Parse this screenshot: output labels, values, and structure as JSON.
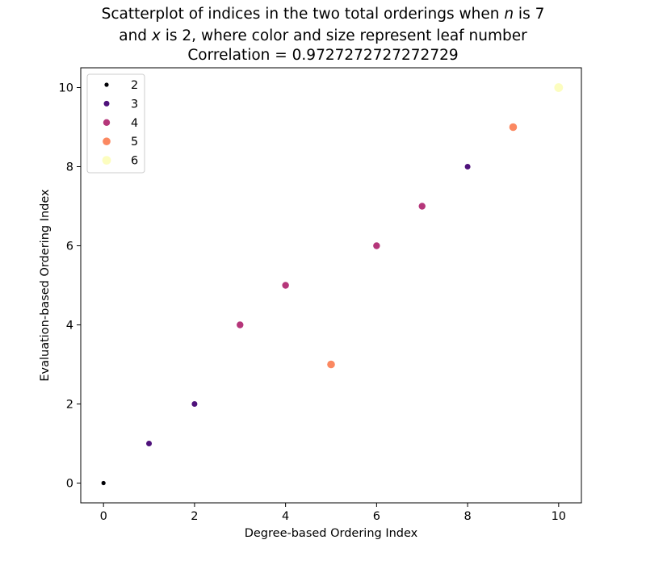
{
  "chart_data": {
    "type": "scatter",
    "title": {
      "line1_part1": "Scatterplot of indices in the two total orderings when ",
      "n_var": "n",
      "line1_part2": " is 7",
      "line2_part1": "and ",
      "x_var": "x",
      "line2_part2": " is 2, where color and size represent leaf number",
      "line3": "Correlation = 0.9727272727272729"
    },
    "xlabel": "Degree-based Ordering Index",
    "ylabel": "Evaluation-based Ordering Index",
    "xlim": [
      -0.5,
      10.5
    ],
    "ylim": [
      -0.5,
      10.5
    ],
    "xticks": [
      0,
      2,
      4,
      6,
      8,
      10
    ],
    "yticks": [
      0,
      2,
      4,
      6,
      8,
      10
    ],
    "grid": false,
    "legend_position": "top-left",
    "legend": [
      {
        "label": "2",
        "color": "#000004"
      },
      {
        "label": "3",
        "color": "#4f127b"
      },
      {
        "label": "4",
        "color": "#b5367a"
      },
      {
        "label": "5",
        "color": "#fb8861"
      },
      {
        "label": "6",
        "color": "#fcfdbf"
      }
    ],
    "points": [
      {
        "x": 0,
        "y": 0,
        "leaf": 2
      },
      {
        "x": 1,
        "y": 1,
        "leaf": 3
      },
      {
        "x": 2,
        "y": 2,
        "leaf": 3
      },
      {
        "x": 3,
        "y": 4,
        "leaf": 4
      },
      {
        "x": 4,
        "y": 5,
        "leaf": 4
      },
      {
        "x": 5,
        "y": 3,
        "leaf": 5
      },
      {
        "x": 6,
        "y": 6,
        "leaf": 4
      },
      {
        "x": 7,
        "y": 7,
        "leaf": 4
      },
      {
        "x": 8,
        "y": 8,
        "leaf": 3
      },
      {
        "x": 9,
        "y": 9,
        "leaf": 5
      },
      {
        "x": 10,
        "y": 10,
        "leaf": 6
      }
    ]
  }
}
